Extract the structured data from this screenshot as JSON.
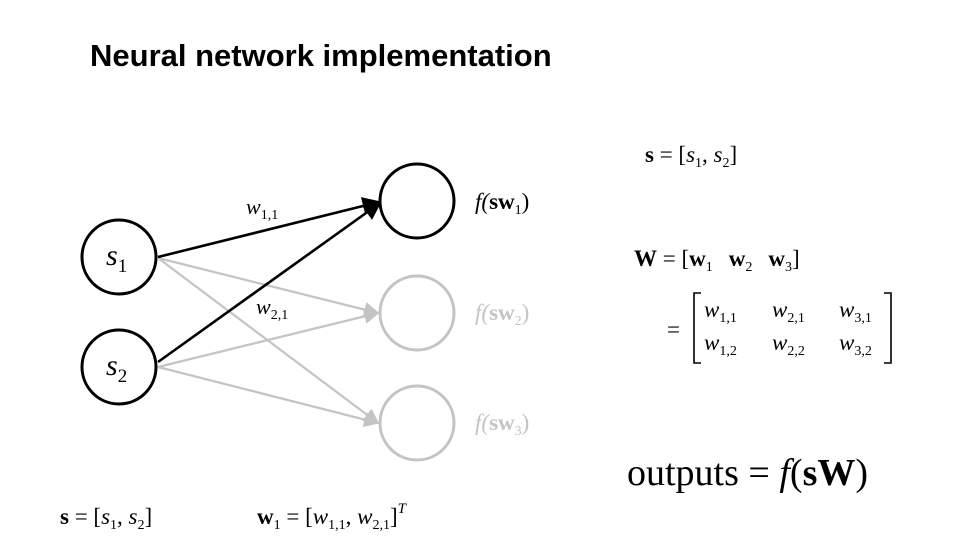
{
  "title": "Neural network implementation",
  "colors": {
    "active": "#000000",
    "faded": "#c4c4c4"
  },
  "inputs": [
    {
      "var": "s",
      "sub": "1"
    },
    {
      "var": "s",
      "sub": "2"
    }
  ],
  "edge_labels": [
    {
      "var": "w",
      "sub": "1,1"
    },
    {
      "var": "w",
      "sub": "2,1"
    }
  ],
  "outputs": [
    {
      "fn": "f(",
      "bold": "sw",
      "sub": "1",
      "close": ")",
      "active": true
    },
    {
      "fn": "f(",
      "bold": "sw",
      "sub": "2",
      "close": ")",
      "active": false
    },
    {
      "fn": "f(",
      "bold": "sw",
      "sub": "3",
      "close": ")",
      "active": false
    }
  ],
  "equations": {
    "s_vector": {
      "lhs": "s",
      "eq": " = [",
      "a": "s",
      "a_sub": "1",
      "sep": ", ",
      "b": "s",
      "b_sub": "2",
      "close": "]"
    },
    "W_vector": {
      "lhs": "W",
      "eq": " = [",
      "c1": "w",
      "c1_sub": "1",
      "c2": "w",
      "c2_sub": "2",
      "c3": "w",
      "c3_sub": "3",
      "close": "]"
    },
    "W_matrix": {
      "eq": "=",
      "rows": [
        [
          {
            "var": "w",
            "sub": "1,1"
          },
          {
            "var": "w",
            "sub": "2,1"
          },
          {
            "var": "w",
            "sub": "3,1"
          }
        ],
        [
          {
            "var": "w",
            "sub": "1,2"
          },
          {
            "var": "w",
            "sub": "2,2"
          },
          {
            "var": "w",
            "sub": "3,2"
          }
        ]
      ]
    },
    "outputs_eq": {
      "word": "outputs",
      "eq": " = ",
      "fn": "f",
      "open": "(",
      "bold": "sW",
      "close": ")"
    },
    "s_bottom": {
      "lhs": "s",
      "eq": " = [",
      "a": "s",
      "a_sub": "1",
      "sep": ", ",
      "b": "s",
      "b_sub": "2",
      "close": "]"
    },
    "w1_bottom": {
      "lhs": "w",
      "lhs_sub": "1",
      "eq": " = [",
      "a": "w",
      "a_sub": "1,1",
      "sep": ", ",
      "b": "w",
      "b_sub": "2,1",
      "close": "]",
      "sup": "T"
    }
  }
}
